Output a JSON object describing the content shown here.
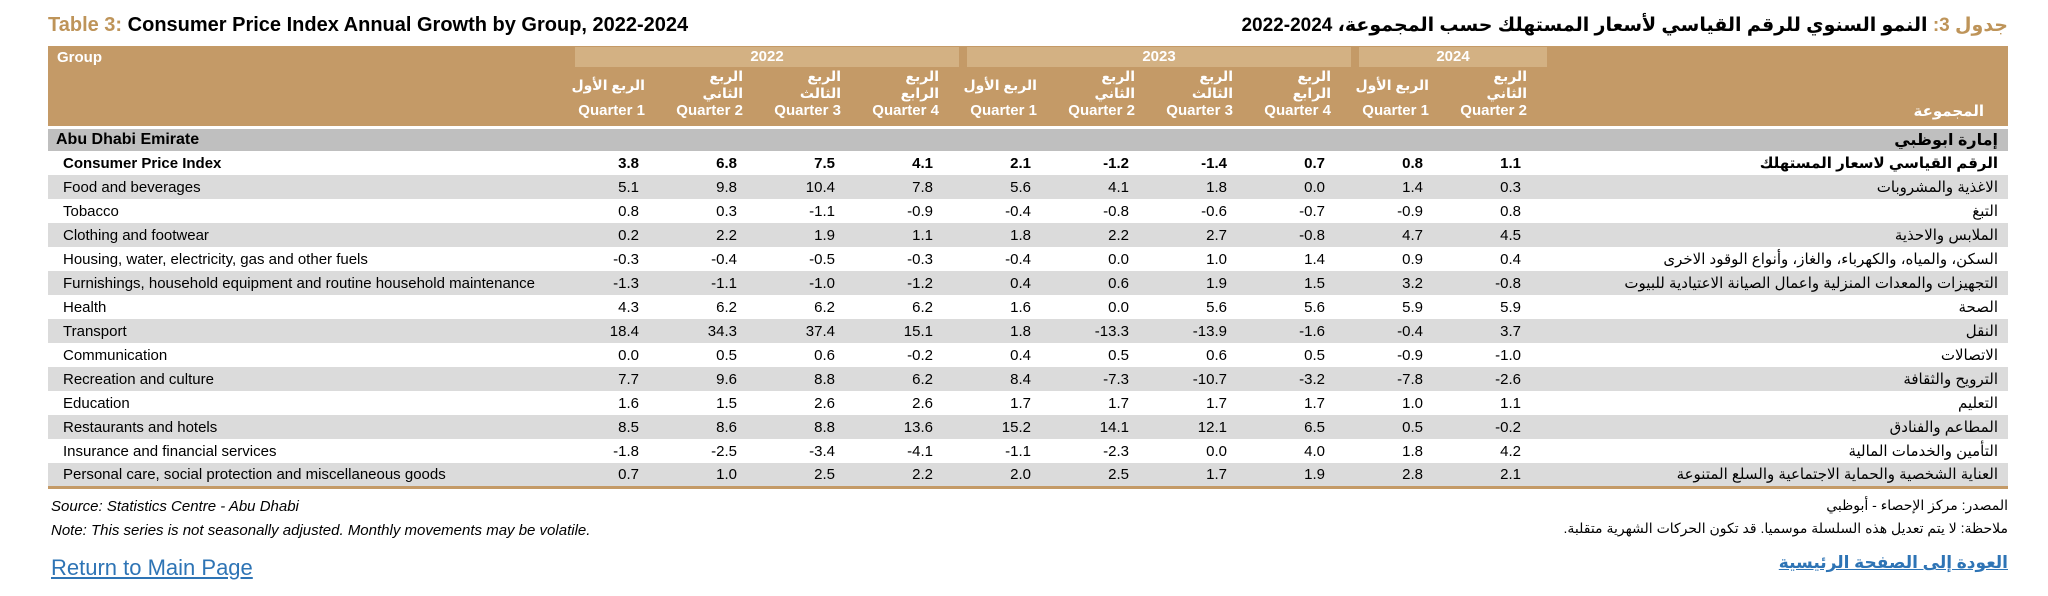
{
  "accent_color": "#C49A67",
  "year_band_color": "#D3B183",
  "section_row_color": "#BFBFBF",
  "alt_row_color": "#DBDBDB",
  "link_color": "#2E74B5",
  "title": {
    "en_label": "Table 3:",
    "en_text": "Consumer Price Index Annual Growth by Group, 2022-2024",
    "ar_label": "جدول 3:",
    "ar_text": "النمو السنوي للرقم القياسي لأسعار المستهلك حسب المجموعة، 2024-2022"
  },
  "header": {
    "group_label": "Group",
    "group_label_ar": "المجموعة",
    "years": [
      {
        "label": "2022",
        "span": 4
      },
      {
        "label": "2023",
        "span": 4
      },
      {
        "label": "2024",
        "span": 2
      }
    ],
    "quarters_ar": [
      "الربع الأول",
      "الربع الثاني",
      "الربع الثالث",
      "الربع الرابع",
      "الربع الأول",
      "الربع الثاني",
      "الربع الثالث",
      "الربع الرابع",
      "الربع الأول",
      "الربع الثاني"
    ],
    "quarters_en": [
      "Quarter 1",
      "Quarter 2",
      "Quarter 3",
      "Quarter 4",
      "Quarter 1",
      "Quarter 2",
      "Quarter 3",
      "Quarter 4",
      "Quarter 1",
      "Quarter 2"
    ]
  },
  "section": {
    "en": "Abu Dhabi Emirate",
    "ar": "إمارة ابوظبي"
  },
  "rows": [
    {
      "en": "Consumer Price Index",
      "ar": "الرقم القياسي لاسعار المستهلك",
      "bold": true,
      "values": [
        "3.8",
        "6.8",
        "7.5",
        "4.1",
        "2.1",
        "-1.2",
        "-1.4",
        "0.7",
        "0.8",
        "1.1"
      ]
    },
    {
      "en": "Food and beverages",
      "ar": "الاغذية والمشروبات",
      "bold": false,
      "values": [
        "5.1",
        "9.8",
        "10.4",
        "7.8",
        "5.6",
        "4.1",
        "1.8",
        "0.0",
        "1.4",
        "0.3"
      ]
    },
    {
      "en": "Tobacco",
      "ar": "التبغ",
      "bold": false,
      "values": [
        "0.8",
        "0.3",
        "-1.1",
        "-0.9",
        "-0.4",
        "-0.8",
        "-0.6",
        "-0.7",
        "-0.9",
        "0.8"
      ]
    },
    {
      "en": "Clothing and footwear",
      "ar": "الملابس والاحذية",
      "bold": false,
      "values": [
        "0.2",
        "2.2",
        "1.9",
        "1.1",
        "1.8",
        "2.2",
        "2.7",
        "-0.8",
        "4.7",
        "4.5"
      ]
    },
    {
      "en": "Housing, water, electricity, gas and other fuels",
      "ar": "السكن، والمياه، والكهرباء، والغاز، وأنواع الوقود الاخرى",
      "bold": false,
      "values": [
        "-0.3",
        "-0.4",
        "-0.5",
        "-0.3",
        "-0.4",
        "0.0",
        "1.0",
        "1.4",
        "0.9",
        "0.4"
      ]
    },
    {
      "en": "Furnishings, household equipment and routine household maintenance",
      "ar": "التجهيزات والمعدات المنزلية واعمال الصيانة الاعتيادية للبيوت",
      "bold": false,
      "values": [
        "-1.3",
        "-1.1",
        "-1.0",
        "-1.2",
        "0.4",
        "0.6",
        "1.9",
        "1.5",
        "3.2",
        "-0.8"
      ]
    },
    {
      "en": "Health",
      "ar": "الصحة",
      "bold": false,
      "values": [
        "4.3",
        "6.2",
        "6.2",
        "6.2",
        "1.6",
        "0.0",
        "5.6",
        "5.6",
        "5.9",
        "5.9"
      ]
    },
    {
      "en": "Transport",
      "ar": "النقل",
      "bold": false,
      "values": [
        "18.4",
        "34.3",
        "37.4",
        "15.1",
        "1.8",
        "-13.3",
        "-13.9",
        "-1.6",
        "-0.4",
        "3.7"
      ]
    },
    {
      "en": "Communication",
      "ar": "الاتصالات",
      "bold": false,
      "values": [
        "0.0",
        "0.5",
        "0.6",
        "-0.2",
        "0.4",
        "0.5",
        "0.6",
        "0.5",
        "-0.9",
        "-1.0"
      ]
    },
    {
      "en": "Recreation and culture",
      "ar": "الترويح والثقافة",
      "bold": false,
      "values": [
        "7.7",
        "9.6",
        "8.8",
        "6.2",
        "8.4",
        "-7.3",
        "-10.7",
        "-3.2",
        "-7.8",
        "-2.6"
      ]
    },
    {
      "en": "Education",
      "ar": "التعليم",
      "bold": false,
      "values": [
        "1.6",
        "1.5",
        "2.6",
        "2.6",
        "1.7",
        "1.7",
        "1.7",
        "1.7",
        "1.0",
        "1.1"
      ]
    },
    {
      "en": "Restaurants and hotels",
      "ar": "المطاعم والفنادق",
      "bold": false,
      "values": [
        "8.5",
        "8.6",
        "8.8",
        "13.6",
        "15.2",
        "14.1",
        "12.1",
        "6.5",
        "0.5",
        "-0.2"
      ]
    },
    {
      "en": "Insurance and financial services",
      "ar": "التأمين والخدمات المالية",
      "bold": false,
      "values": [
        "-1.8",
        "-2.5",
        "-3.4",
        "-4.1",
        "-1.1",
        "-2.3",
        "0.0",
        "4.0",
        "1.8",
        "4.2"
      ]
    },
    {
      "en": "Personal care, social protection and miscellaneous goods",
      "ar": "العناية الشخصية والحماية الاجتماعية والسلع المتنوعة",
      "bold": false,
      "values": [
        "0.7",
        "1.0",
        "2.5",
        "2.2",
        "2.0",
        "2.5",
        "1.7",
        "1.9",
        "2.8",
        "2.1"
      ]
    }
  ],
  "footer": {
    "source_en": "Source: Statistics Centre - Abu Dhabi",
    "note_en": "Note: This series is not seasonally adjusted. Monthly movements may be volatile.",
    "link_en": "Return to Main Page",
    "source_ar": "المصدر: مركز الإحصاء - أبوظبي",
    "note_ar": "ملاحظة: لا يتم تعديل هذه السلسلة موسميا. قد تكون الحركات الشهرية متقلبة.",
    "link_ar": "العودة إلى الصفحة الرئيسية"
  }
}
